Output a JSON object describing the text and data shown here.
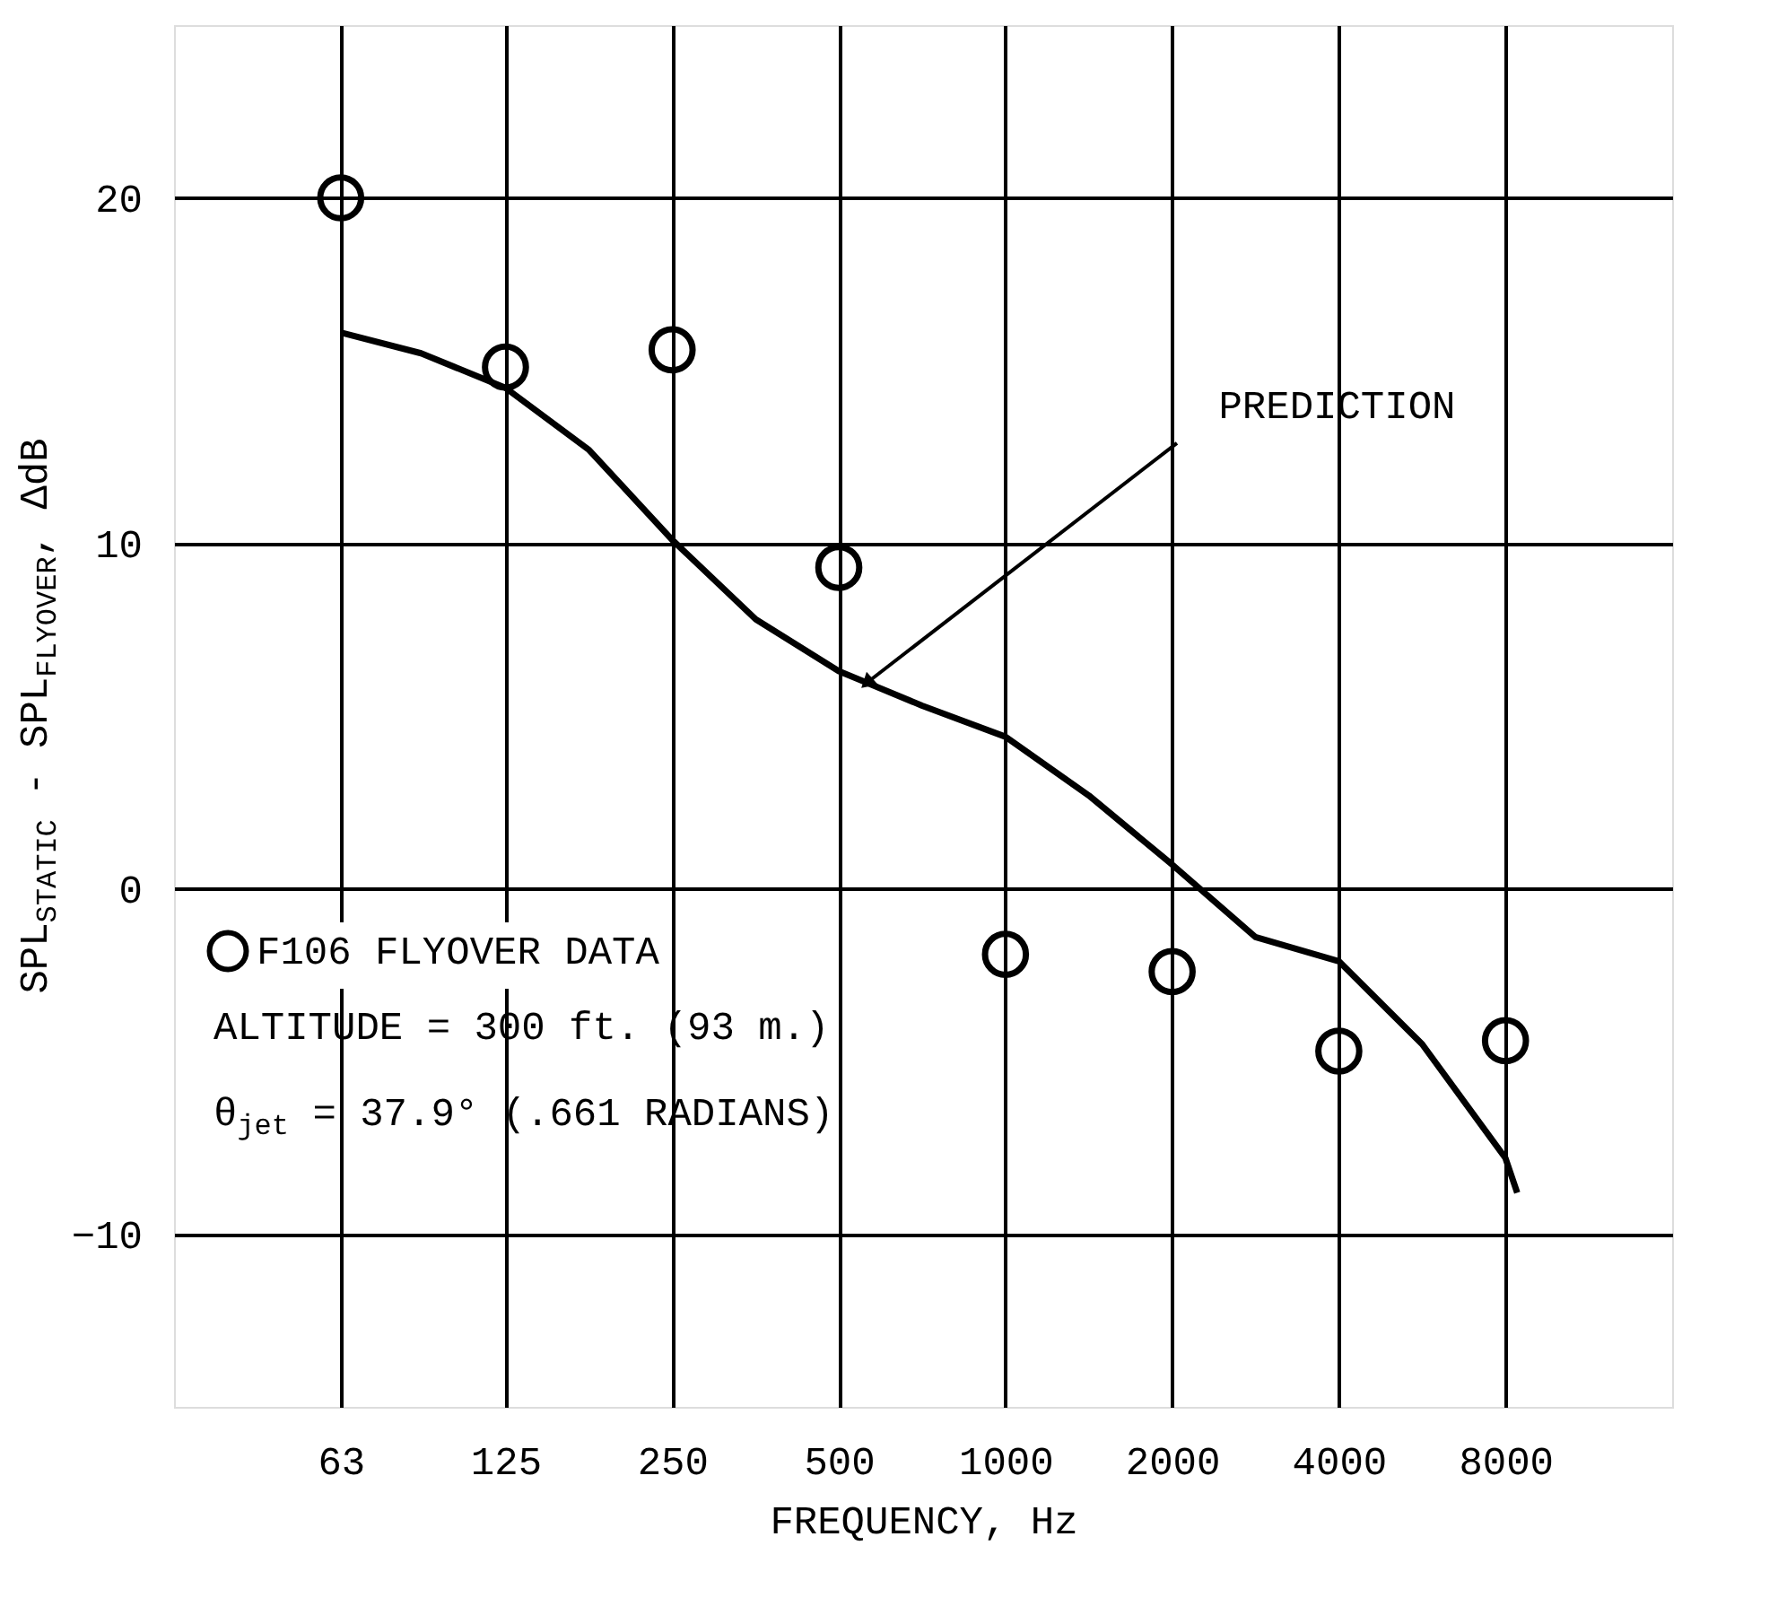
{
  "chart_data": {
    "type": "scatter",
    "xlabel": "FREQUENCY, Hz",
    "ylabel": "SPL$_{STATIC}$ - SPL$_{FLYOVER}$, ΔdB",
    "series": [
      {
        "name": "F106 FLYOVER DATA",
        "color": "#000000",
        "marker": "circle",
        "x": [
          63,
          125,
          250,
          500,
          1000,
          2000,
          4000,
          8000
        ],
        "values": [
          20,
          15.1,
          15.6,
          9.3,
          -1.9,
          -2.4,
          -4.7,
          -4.4
        ]
      },
      {
        "type": "line",
        "color": "#000000",
        "marker": "none",
        "line_style": "solid",
        "x": [
          63,
          88,
          125,
          177,
          250,
          354,
          500,
          707,
          1000,
          1414,
          2000,
          2828,
          4000,
          5657,
          8000,
          8400
        ],
        "values": [
          16.1,
          15.5,
          14.5,
          12.7,
          10.1,
          7.8,
          6.3,
          5.3,
          4.4,
          2.7,
          0.7,
          -1.4,
          -2.1,
          -4.5,
          -7.8,
          -8.8
        ]
      }
    ],
    "annotations": [
      {
        "text": "PREDICTION",
        "x": 566,
        "y": 6.0
      },
      "ALTITUDE = 300 ft. (93 m.)",
      "θ$_{jet}$ = 37.9° (.661 RADIANS)"
    ],
    "log": "x",
    "xlim": [
      31.5,
      16000
    ],
    "xticks": [
      63,
      125,
      250,
      500,
      1000,
      2000,
      4000,
      8000
    ],
    "ylim": [
      -15,
      25
    ],
    "yticks": [
      -10,
      0,
      10,
      20
    ],
    "grid": true,
    "legend": "bottom left"
  }
}
